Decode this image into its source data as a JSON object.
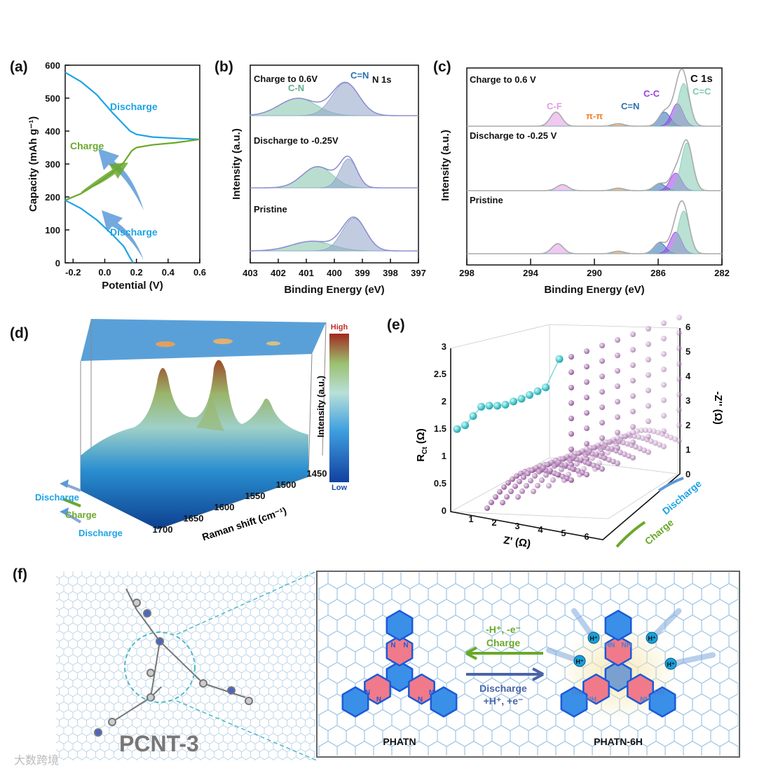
{
  "panels": {
    "a": "(a)",
    "b": "(b)",
    "c": "(c)",
    "d": "(d)",
    "e": "(e)",
    "f": "(f)"
  },
  "colors": {
    "discharge": "#1ea3e6",
    "charge": "#6aa82a",
    "arrow_blue": "#5b9ad8",
    "cn": "#7fc3a9",
    "cnn": "#8fa3c8",
    "cf": "#e39be6",
    "pipi": "#f0822a",
    "cc": "#9b3fe6",
    "cc2": "#7fc8b0",
    "cn_blue": "#2c6fb0",
    "rct": "#2ec4c4",
    "sphere": "#9a5fa0"
  },
  "chart_data": [
    {
      "id": "a",
      "type": "line",
      "xlabel": "Potential (V)",
      "ylabel": "Capacity (mAh g⁻¹)",
      "xlim": [
        -0.25,
        0.6
      ],
      "ylim": [
        0,
        600
      ],
      "xticks": [
        "-0.2",
        "0.0",
        "0.2",
        "0.4",
        "0.6"
      ],
      "xtick_values": [
        -0.2,
        0,
        0.2,
        0.4,
        0.6
      ],
      "yticks": [
        "0",
        "100",
        "200",
        "300",
        "400",
        "500",
        "600"
      ],
      "ytick_values": [
        0,
        100,
        200,
        300,
        400,
        500,
        600
      ],
      "annotations": {
        "discharge_top": "Discharge",
        "charge": "Charge",
        "discharge_bottom": "Discharge"
      },
      "series": [
        {
          "name": "Discharge (upper)",
          "color": "#1ea3e6",
          "x": [
            -0.25,
            -0.15,
            -0.05,
            0.05,
            0.12,
            0.16,
            0.2,
            0.3,
            0.45,
            0.6
          ],
          "y": [
            578,
            550,
            510,
            455,
            420,
            400,
            390,
            382,
            378,
            375
          ]
        },
        {
          "name": "Charge",
          "color": "#6aa82a",
          "x": [
            -0.25,
            -0.15,
            -0.05,
            0.05,
            0.12,
            0.17,
            0.2,
            0.3,
            0.45,
            0.6
          ],
          "y": [
            190,
            210,
            240,
            275,
            305,
            340,
            350,
            358,
            365,
            375
          ]
        },
        {
          "name": "Discharge (lower)",
          "color": "#1ea3e6",
          "x": [
            -0.25,
            -0.15,
            -0.05,
            0.05,
            0.12,
            0.16,
            0.18
          ],
          "y": [
            190,
            165,
            130,
            85,
            50,
            15,
            0
          ]
        }
      ]
    },
    {
      "id": "b",
      "type": "line",
      "title": "N 1s",
      "xlabel": "Binding Energy (eV)",
      "ylabel": "Intensity (a.u.)",
      "xlim": [
        403,
        397
      ],
      "xticks": [
        "403",
        "402",
        "401",
        "400",
        "399",
        "398",
        "397"
      ],
      "xtick_values": [
        403,
        402,
        401,
        400,
        399,
        398,
        397
      ],
      "spectra": [
        {
          "name": "Charge to 0.6V",
          "peaks": [
            {
              "label": "C-N",
              "center": 401.3,
              "height": 0.45,
              "width": 1.1
            },
            {
              "label": "C=N",
              "center": 399.6,
              "height": 0.85,
              "width": 0.8
            }
          ]
        },
        {
          "name": "Discharge to -0.25V",
          "peaks": [
            {
              "label": "C-N",
              "center": 400.6,
              "height": 0.55,
              "width": 0.9
            },
            {
              "label": "C=N",
              "center": 399.5,
              "height": 0.75,
              "width": 0.5
            }
          ]
        },
        {
          "name": "Pristine",
          "peaks": [
            {
              "label": "C-N",
              "center": 400.8,
              "height": 0.25,
              "width": 1.2
            },
            {
              "label": "C=N",
              "center": 399.3,
              "height": 0.85,
              "width": 0.7
            }
          ]
        }
      ]
    },
    {
      "id": "c",
      "type": "line",
      "title": "C 1s",
      "xlabel": "Binding Energy (eV)",
      "ylabel": "Intensity (a.u.)",
      "xlim": [
        298,
        282
      ],
      "xticks": [
        "298",
        "294",
        "290",
        "286",
        "282"
      ],
      "xtick_values": [
        298,
        294,
        290,
        286,
        282
      ],
      "peak_labels": {
        "cf": "C-F",
        "pipi": "π-π",
        "cn": "C=N",
        "cc": "C-C",
        "cc2": "C=C"
      },
      "spectra": [
        {
          "name": "Charge to 0.6 V",
          "peaks": [
            {
              "label": "C-F",
              "center": 292.4,
              "height": 0.28
            },
            {
              "label": "π-π",
              "center": 288.5,
              "height": 0.05
            },
            {
              "label": "C=N",
              "center": 285.6,
              "height": 0.28
            },
            {
              "label": "C-C",
              "center": 284.8,
              "height": 0.45
            },
            {
              "label": "C=C",
              "center": 284.4,
              "height": 0.85
            }
          ]
        },
        {
          "name": "Discharge to -0.25 V",
          "peaks": [
            {
              "label": "C-F",
              "center": 292.0,
              "height": 0.12
            },
            {
              "label": "π-π",
              "center": 288.5,
              "height": 0.05
            },
            {
              "label": "C=N",
              "center": 285.9,
              "height": 0.14
            },
            {
              "label": "C-C",
              "center": 284.9,
              "height": 0.35
            },
            {
              "label": "C=C",
              "center": 284.2,
              "height": 0.95
            }
          ]
        },
        {
          "name": "Pristine",
          "peaks": [
            {
              "label": "C-F",
              "center": 292.3,
              "height": 0.2
            },
            {
              "label": "π-π",
              "center": 288.5,
              "height": 0.05
            },
            {
              "label": "C=N",
              "center": 285.9,
              "height": 0.22
            },
            {
              "label": "C-C",
              "center": 284.9,
              "height": 0.43
            },
            {
              "label": "C=C",
              "center": 284.4,
              "height": 0.85
            }
          ]
        }
      ]
    },
    {
      "id": "d",
      "type": "heatmap",
      "xlabel": "Raman shift (cm⁻¹)",
      "zlabel": "Intensity (a.u.)",
      "xticks": [
        "1700",
        "1650",
        "1600",
        "1550",
        "1500",
        "1450"
      ],
      "colorbar": {
        "high": "High",
        "low": "Low"
      },
      "peaks_cm": [
        1640,
        1590,
        1530
      ],
      "steps": [
        "Discharge",
        "Charge",
        "Discharge"
      ]
    },
    {
      "id": "e",
      "type": "scatter",
      "xlabel": "Z' (Ω)",
      "ylabel_left": "R",
      "ylabel_left_sub": "Ct",
      "ylabel_left_unit": " (Ω)",
      "ylabel_right": "-Z'' (Ω)",
      "xticks": [
        "1",
        "2",
        "3",
        "4",
        "5",
        "6"
      ],
      "yticks_left": [
        "0",
        "0.5",
        "1",
        "1.5",
        "2",
        "2.5",
        "3"
      ],
      "yticks_right": [
        "0",
        "1",
        "2",
        "3",
        "4",
        "5",
        "6"
      ],
      "ylim_left": [
        0,
        3
      ],
      "rct_values": [
        1.55,
        1.6,
        1.75,
        1.9,
        1.9,
        1.88,
        1.88,
        1.92,
        1.95,
        2.0,
        2.05,
        2.1,
        2.6
      ],
      "steps": [
        "Charge",
        "Discharge"
      ]
    }
  ],
  "schematic": {
    "left_label": "PCNT-3",
    "molecule_left": "PHATN",
    "molecule_right": "PHATN-6H",
    "top_arrow": {
      "reaction": "-H⁺, -e⁻",
      "label": "Charge"
    },
    "bottom_arrow": {
      "label": "Discharge",
      "reaction": "+H⁺, +e⁻"
    },
    "atom_n": "N",
    "atom_nh": "NH",
    "atom_hn": "HN",
    "proton": "H⁺"
  },
  "watermark": "大数跨境"
}
